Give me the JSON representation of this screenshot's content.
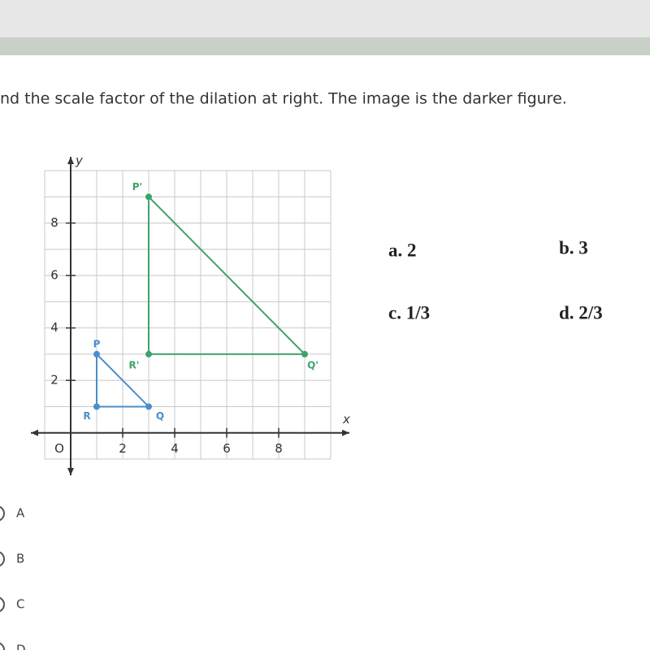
{
  "question": "nd the scale factor of the dilation at right. The image is the darker figure.",
  "graph": {
    "x_label": "x",
    "y_label": "y",
    "origin_label": "O",
    "xlim": [
      -1,
      10
    ],
    "ylim": [
      -1,
      10
    ],
    "xticks": [
      2,
      4,
      6,
      8
    ],
    "yticks": [
      2,
      4,
      6,
      8
    ],
    "triangles": [
      {
        "color": "#4a8fc9",
        "points": [
          {
            "label": "P",
            "x": 1,
            "y": 3
          },
          {
            "label": "Q",
            "x": 3,
            "y": 1
          },
          {
            "label": "R",
            "x": 1,
            "y": 1
          }
        ]
      },
      {
        "color": "#3fa26c",
        "points": [
          {
            "label": "P'",
            "x": 3,
            "y": 9
          },
          {
            "label": "Q'",
            "x": 9,
            "y": 3
          },
          {
            "label": "R'",
            "x": 3,
            "y": 3
          }
        ]
      }
    ]
  },
  "options": [
    "a. 2",
    "b. 3",
    "c. 1/3",
    "d. 2/3"
  ],
  "choices": [
    "A",
    "B",
    "C",
    "D"
  ]
}
